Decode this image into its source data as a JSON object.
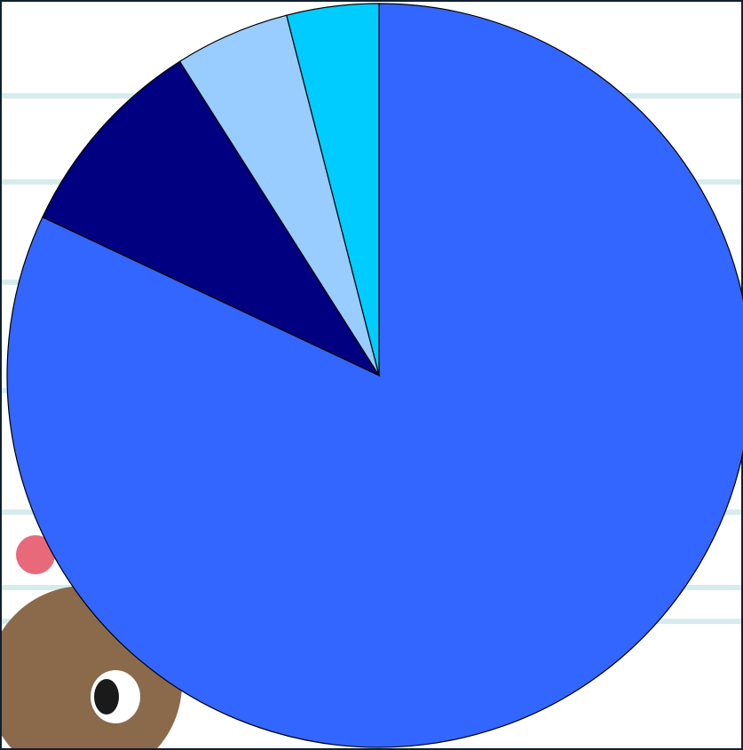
{
  "chart_data": {
    "type": "pie",
    "values": [
      82,
      9,
      5,
      4
    ],
    "colors": [
      "#3366ff",
      "#000080",
      "#99ccff",
      "#00ccff"
    ],
    "start_angle": 90,
    "direction": "clockwise"
  }
}
